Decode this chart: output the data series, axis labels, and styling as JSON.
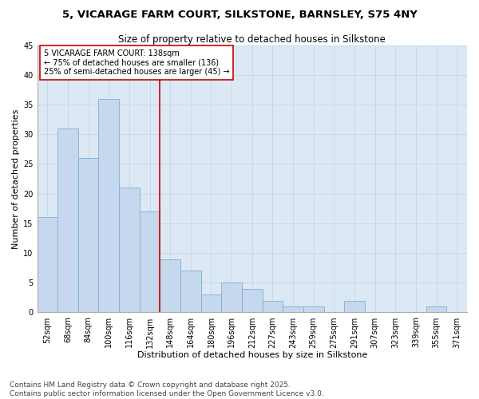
{
  "title_line1": "5, VICARAGE FARM COURT, SILKSTONE, BARNSLEY, S75 4NY",
  "title_line2": "Size of property relative to detached houses in Silkstone",
  "xlabel": "Distribution of detached houses by size in Silkstone",
  "ylabel": "Number of detached properties",
  "categories": [
    "52sqm",
    "68sqm",
    "84sqm",
    "100sqm",
    "116sqm",
    "132sqm",
    "148sqm",
    "164sqm",
    "180sqm",
    "196sqm",
    "212sqm",
    "227sqm",
    "243sqm",
    "259sqm",
    "275sqm",
    "291sqm",
    "307sqm",
    "323sqm",
    "339sqm",
    "355sqm",
    "371sqm"
  ],
  "values": [
    16,
    31,
    26,
    36,
    21,
    17,
    9,
    7,
    3,
    5,
    4,
    2,
    1,
    1,
    0,
    2,
    0,
    0,
    0,
    1,
    0
  ],
  "bar_color": "#c5d8ed",
  "bar_edge_color": "#7bafd4",
  "vline_x_index": 5.5,
  "annotation_text": "5 VICARAGE FARM COURT: 138sqm\n← 75% of detached houses are smaller (136)\n25% of semi-detached houses are larger (45) →",
  "annotation_box_color": "#ffffff",
  "annotation_box_edge_color": "#cc0000",
  "vline_color": "#cc0000",
  "ylim": [
    0,
    45
  ],
  "yticks": [
    0,
    5,
    10,
    15,
    20,
    25,
    30,
    35,
    40,
    45
  ],
  "grid_color": "#c8d8e8",
  "bg_color": "#dce9f5",
  "footer": "Contains HM Land Registry data © Crown copyright and database right 2025.\nContains public sector information licensed under the Open Government Licence v3.0.",
  "title_fontsize": 9.5,
  "subtitle_fontsize": 8.5,
  "axis_label_fontsize": 8,
  "tick_fontsize": 7,
  "annotation_fontsize": 7,
  "footer_fontsize": 6.5
}
